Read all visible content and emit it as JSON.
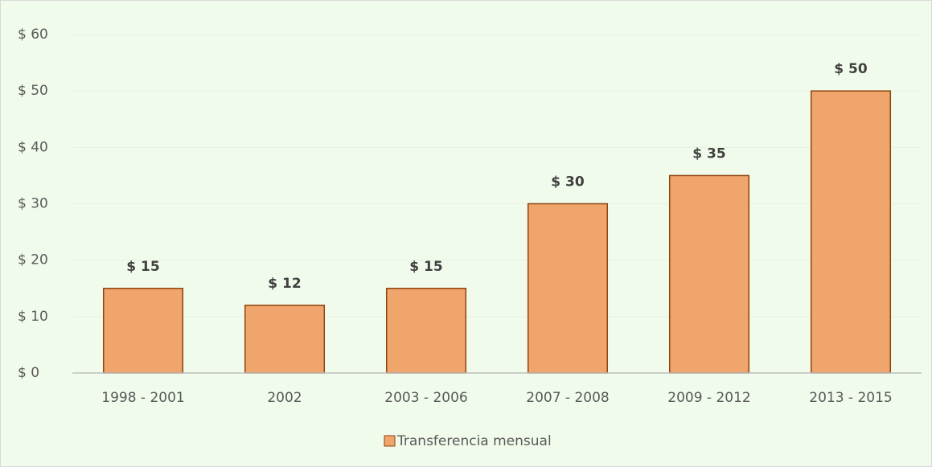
{
  "chart_data": {
    "type": "bar",
    "categories": [
      "1998 - 2001",
      "2002",
      "2003 - 2006",
      "2007 - 2008",
      "2009 - 2012",
      "2013 - 2015"
    ],
    "series": [
      {
        "name": "Transferencia mensual",
        "color": "#f0a56d",
        "edge_color": "#8f430f",
        "values": [
          15,
          12,
          15,
          30,
          35,
          50
        ],
        "value_labels": [
          "$ 15",
          "$ 12",
          "$ 15",
          "$ 30",
          "$ 35",
          "$ 50"
        ]
      }
    ],
    "ylim": [
      0,
      60
    ],
    "yticks": [
      {
        "value": 0,
        "label": "$ 0"
      },
      {
        "value": 10,
        "label": "$ 10"
      },
      {
        "value": 20,
        "label": "$ 20"
      },
      {
        "value": 30,
        "label": "$ 30"
      },
      {
        "value": 40,
        "label": "$ 40"
      },
      {
        "value": 50,
        "label": "$ 50"
      },
      {
        "value": 60,
        "label": "$ 60"
      }
    ],
    "grid": true,
    "legend": "bottom"
  }
}
